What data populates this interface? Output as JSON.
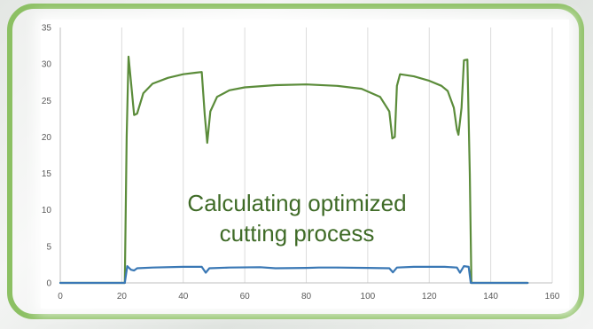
{
  "chart_data": {
    "type": "line",
    "title": "",
    "xlabel": "",
    "ylabel": "",
    "xlim": [
      0,
      160
    ],
    "ylim": [
      0,
      35
    ],
    "x_ticks": [
      0,
      20,
      40,
      60,
      80,
      100,
      120,
      140,
      160
    ],
    "y_ticks": [
      0,
      5,
      10,
      15,
      20,
      25,
      30,
      35
    ],
    "grid": "vertical",
    "legend": "none",
    "series": [
      {
        "color": "#5b8c3a",
        "points": [
          [
            0,
            0
          ],
          [
            21,
            0
          ],
          [
            21.6,
            20
          ],
          [
            22.2,
            31
          ],
          [
            23,
            27.5
          ],
          [
            24,
            23
          ],
          [
            25,
            23.2
          ],
          [
            27,
            26
          ],
          [
            30,
            27.3
          ],
          [
            35,
            28.1
          ],
          [
            40,
            28.6
          ],
          [
            44,
            28.8
          ],
          [
            46,
            28.9
          ],
          [
            47,
            23
          ],
          [
            47.8,
            19.2
          ],
          [
            48.8,
            23.5
          ],
          [
            51,
            25.5
          ],
          [
            55,
            26.4
          ],
          [
            60,
            26.8
          ],
          [
            70,
            27.1
          ],
          [
            80,
            27.2
          ],
          [
            90,
            27
          ],
          [
            98,
            26.6
          ],
          [
            104,
            25.5
          ],
          [
            107,
            23.5
          ],
          [
            108,
            19.8
          ],
          [
            108.8,
            20
          ],
          [
            109.5,
            27
          ],
          [
            110.5,
            28.6
          ],
          [
            115,
            28.3
          ],
          [
            120,
            27.7
          ],
          [
            124,
            27
          ],
          [
            126,
            26.3
          ],
          [
            128,
            24
          ],
          [
            129,
            21
          ],
          [
            129.5,
            20.3
          ],
          [
            130.5,
            24
          ],
          [
            131.3,
            30.5
          ],
          [
            132.4,
            30.6
          ],
          [
            133.2,
            15
          ],
          [
            133.7,
            0
          ],
          [
            152,
            0
          ]
        ]
      },
      {
        "color": "#3a78b5",
        "points": [
          [
            0,
            0
          ],
          [
            21,
            0
          ],
          [
            21.8,
            2.3
          ],
          [
            23,
            1.8
          ],
          [
            24,
            1.7
          ],
          [
            25,
            2
          ],
          [
            30,
            2.1
          ],
          [
            40,
            2.2
          ],
          [
            46,
            2.2
          ],
          [
            47.3,
            1.4
          ],
          [
            48.5,
            2
          ],
          [
            55,
            2.1
          ],
          [
            65,
            2.15
          ],
          [
            70,
            2
          ],
          [
            80,
            2.05
          ],
          [
            84,
            2.1
          ],
          [
            90,
            2.1
          ],
          [
            100,
            2.05
          ],
          [
            107,
            2
          ],
          [
            108.2,
            1.45
          ],
          [
            109.5,
            2.1
          ],
          [
            115,
            2.2
          ],
          [
            125,
            2.2
          ],
          [
            129,
            2.1
          ],
          [
            130,
            1.4
          ],
          [
            131.3,
            2.3
          ],
          [
            132.8,
            2.2
          ],
          [
            133.5,
            0
          ],
          [
            152,
            0
          ]
        ]
      }
    ]
  },
  "overlay": {
    "line1": "Calculating optimized",
    "line2": "cutting process"
  }
}
